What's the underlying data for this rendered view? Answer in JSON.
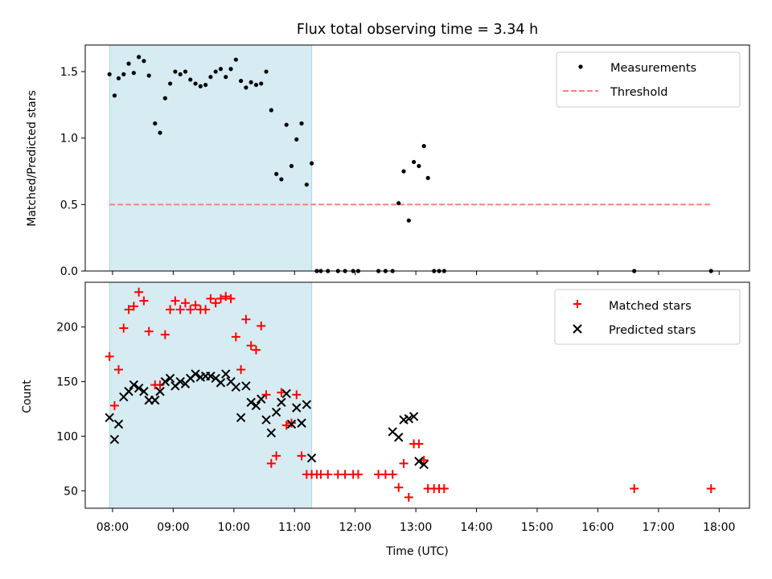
{
  "title": "Flux total observing time = 3.34 h",
  "colors": {
    "shade": "#add8e6",
    "measurement": "#000000",
    "threshold": "#ff7f7f",
    "matched": "#ff0000",
    "predicted": "#000000"
  },
  "chart_data": [
    {
      "type": "scatter",
      "panel": "top",
      "ylabel": "Matched/Predicted stars",
      "ylim": [
        0,
        1.7
      ],
      "yticks": [
        0.0,
        0.5,
        1.0,
        1.5
      ],
      "ytick_labels": [
        "0.0",
        "0.5",
        "1.0",
        "1.5"
      ],
      "xlim": [
        "07:33",
        "18:30"
      ],
      "shaded_span": [
        "07:57",
        "11:17"
      ],
      "legend": {
        "position": "upper right",
        "entries": [
          "Measurements",
          "Threshold"
        ]
      },
      "threshold": {
        "name": "Threshold",
        "y": 0.5,
        "x": [
          "07:57",
          "17:52"
        ]
      },
      "series": [
        {
          "name": "Measurements",
          "x": [
            "07:57",
            "08:02",
            "08:06",
            "08:11",
            "08:16",
            "08:21",
            "08:26",
            "08:31",
            "08:36",
            "08:42",
            "08:47",
            "08:52",
            "08:57",
            "09:02",
            "09:07",
            "09:12",
            "09:17",
            "09:22",
            "09:27",
            "09:32",
            "09:37",
            "09:42",
            "09:47",
            "09:52",
            "09:57",
            "10:02",
            "10:07",
            "10:12",
            "10:17",
            "10:22",
            "10:27",
            "10:32",
            "10:37",
            "10:42",
            "10:47",
            "10:52",
            "10:57",
            "11:02",
            "11:07",
            "11:12",
            "11:17",
            "11:22",
            "11:26",
            "11:33",
            "11:43",
            "11:50",
            "11:58",
            "12:03",
            "12:23",
            "12:30",
            "12:37",
            "12:43",
            "12:48",
            "12:53",
            "12:58",
            "13:03",
            "13:08",
            "13:12",
            "13:18",
            "13:23",
            "13:28",
            "16:36",
            "17:52"
          ],
          "y": [
            1.48,
            1.32,
            1.45,
            1.48,
            1.56,
            1.49,
            1.61,
            1.58,
            1.47,
            1.11,
            1.04,
            1.3,
            1.41,
            1.5,
            1.48,
            1.5,
            1.44,
            1.41,
            1.39,
            1.4,
            1.46,
            1.5,
            1.52,
            1.46,
            1.52,
            1.59,
            1.43,
            1.38,
            1.42,
            1.4,
            1.41,
            1.5,
            1.21,
            0.73,
            0.69,
            1.1,
            0.79,
            0.99,
            1.11,
            0.65,
            0.81,
            0,
            0,
            0,
            0,
            0,
            0,
            0,
            0,
            0,
            0,
            0.51,
            0.75,
            0.38,
            0.82,
            0.79,
            0.94,
            0.7,
            0,
            0,
            0,
            0,
            0
          ]
        }
      ]
    },
    {
      "type": "scatter",
      "panel": "bottom",
      "xlabel": "Time (UTC)",
      "ylabel": "Count",
      "ylim": [
        34,
        241
      ],
      "yticks": [
        50,
        100,
        150,
        200
      ],
      "ytick_labels": [
        "50",
        "100",
        "150",
        "200"
      ],
      "xlim": [
        "07:33",
        "18:30"
      ],
      "xticks": [
        "08:00",
        "09:00",
        "10:00",
        "11:00",
        "12:00",
        "13:00",
        "14:00",
        "15:00",
        "16:00",
        "17:00",
        "18:00"
      ],
      "shaded_span": [
        "07:57",
        "11:17"
      ],
      "legend": {
        "position": "upper right",
        "entries": [
          "Matched stars",
          "Predicted stars"
        ]
      },
      "series": [
        {
          "name": "Matched stars",
          "marker": "+",
          "x": [
            "07:57",
            "08:02",
            "08:06",
            "08:11",
            "08:16",
            "08:21",
            "08:26",
            "08:31",
            "08:36",
            "08:42",
            "08:47",
            "08:52",
            "08:57",
            "09:02",
            "09:07",
            "09:12",
            "09:17",
            "09:22",
            "09:27",
            "09:32",
            "09:37",
            "09:42",
            "09:47",
            "09:52",
            "09:57",
            "10:02",
            "10:07",
            "10:12",
            "10:17",
            "10:22",
            "10:27",
            "10:32",
            "10:37",
            "10:42",
            "10:47",
            "10:52",
            "10:57",
            "11:02",
            "11:07",
            "11:12",
            "11:17",
            "11:22",
            "11:26",
            "11:33",
            "11:43",
            "11:50",
            "11:58",
            "12:03",
            "12:23",
            "12:30",
            "12:37",
            "12:43",
            "12:48",
            "12:53",
            "12:58",
            "13:03",
            "13:08",
            "13:12",
            "13:18",
            "13:23",
            "13:28",
            "16:36",
            "17:52"
          ],
          "y": [
            173,
            128,
            161,
            199,
            216,
            219,
            232,
            224,
            196,
            147,
            147,
            193,
            216,
            224,
            216,
            222,
            216,
            220,
            216,
            216,
            226,
            222,
            226,
            228,
            226,
            191,
            161,
            207,
            183,
            179,
            201,
            138,
            75,
            82,
            140,
            110,
            112,
            138,
            82,
            65,
            65,
            65,
            65,
            65,
            65,
            65,
            65,
            65,
            65,
            65,
            65,
            53,
            75,
            44,
            93,
            93,
            78,
            52,
            52,
            52,
            52,
            52,
            52
          ]
        },
        {
          "name": "Predicted stars",
          "marker": "x",
          "x": [
            "07:57",
            "08:02",
            "08:06",
            "08:11",
            "08:16",
            "08:21",
            "08:26",
            "08:31",
            "08:36",
            "08:42",
            "08:47",
            "08:52",
            "08:57",
            "09:02",
            "09:07",
            "09:12",
            "09:17",
            "09:22",
            "09:27",
            "09:32",
            "09:37",
            "09:42",
            "09:47",
            "09:52",
            "09:57",
            "10:02",
            "10:07",
            "10:12",
            "10:17",
            "10:22",
            "10:27",
            "10:32",
            "10:37",
            "10:42",
            "10:47",
            "10:52",
            "10:57",
            "11:02",
            "11:07",
            "11:12",
            "11:17",
            "12:37",
            "12:43",
            "12:48",
            "12:53",
            "12:58",
            "13:03",
            "13:08"
          ],
          "y": [
            117,
            97,
            111,
            136,
            141,
            147,
            144,
            141,
            133,
            133,
            141,
            150,
            153,
            146,
            150,
            148,
            153,
            157,
            154,
            155,
            155,
            153,
            149,
            157,
            150,
            145,
            117,
            146,
            131,
            128,
            134,
            115,
            103,
            122,
            131,
            139,
            111,
            126,
            112,
            129,
            80,
            104,
            99,
            115,
            116,
            118,
            77,
            74
          ]
        }
      ]
    }
  ]
}
